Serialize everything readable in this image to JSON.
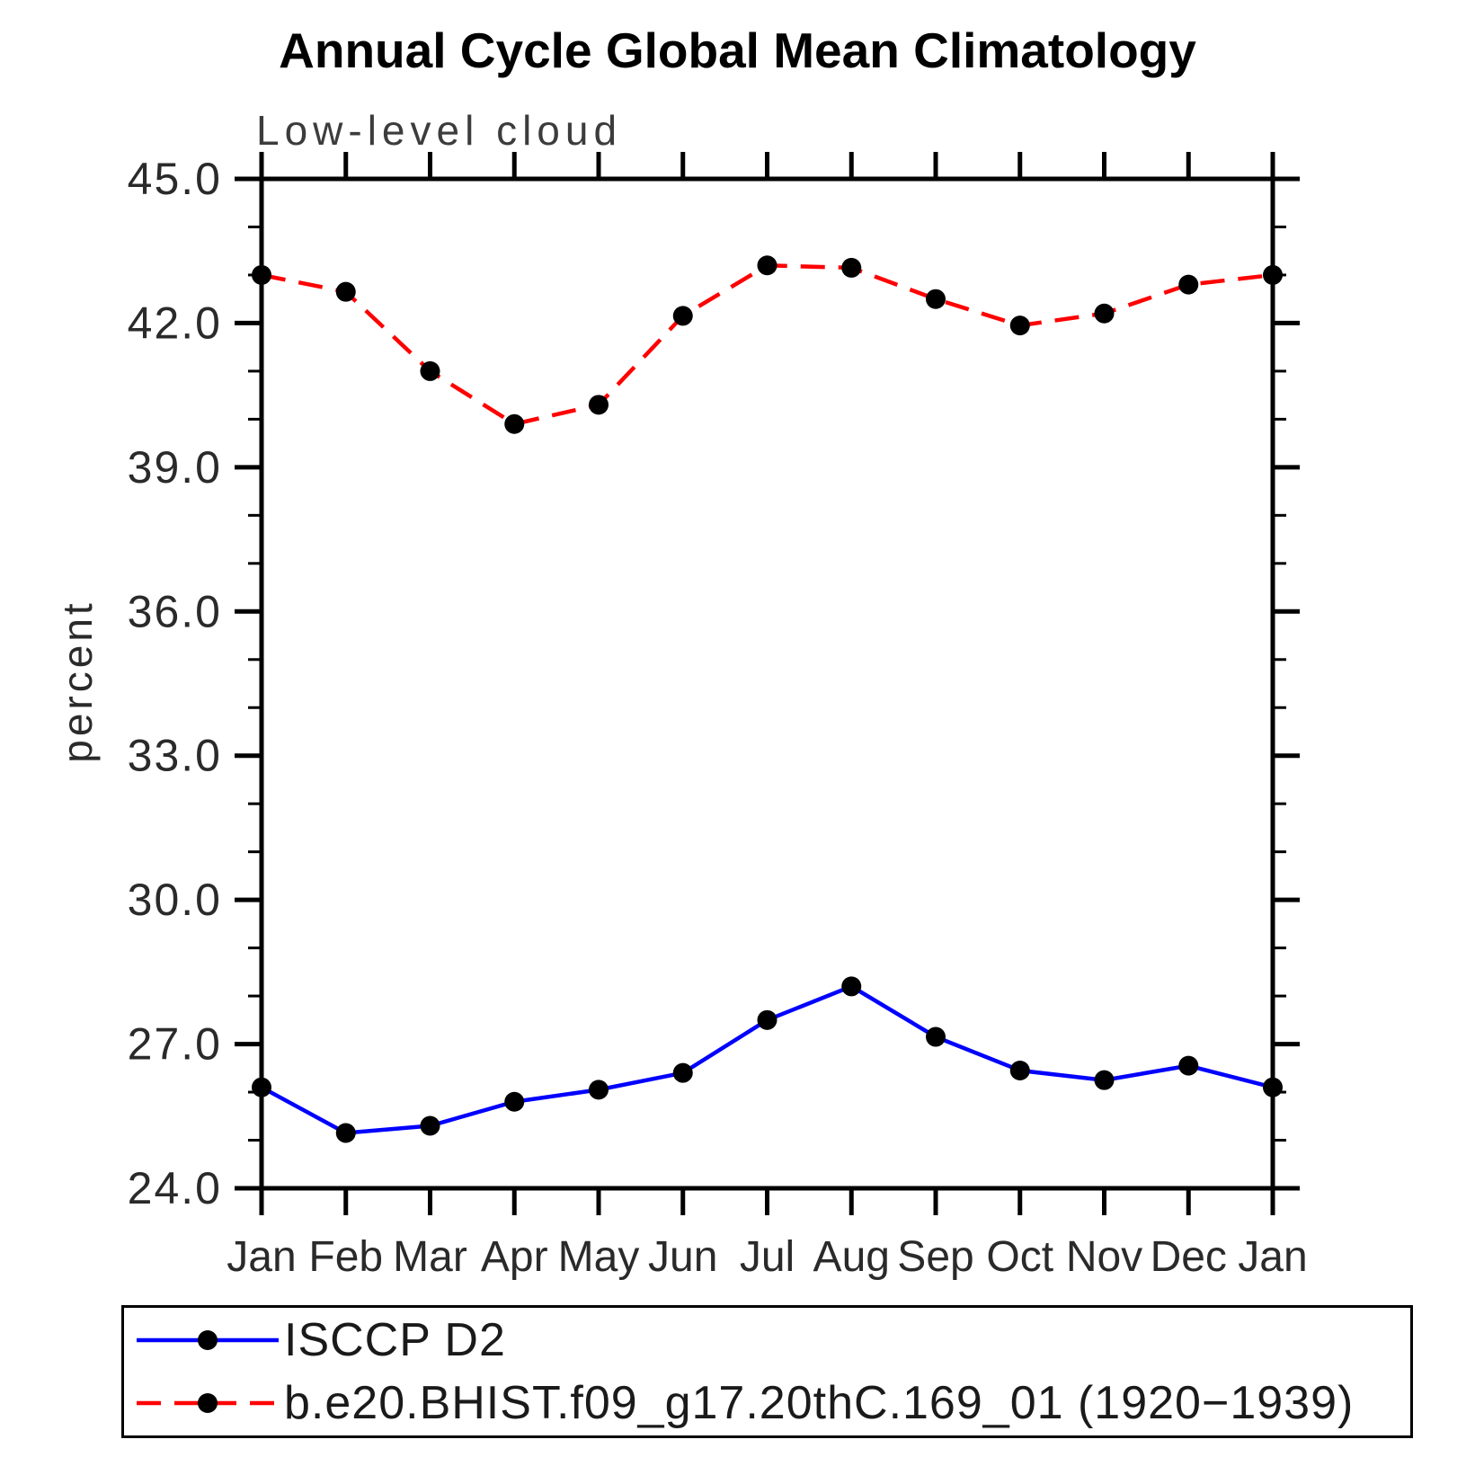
{
  "page": {
    "background": "#ffffff"
  },
  "chart_data": {
    "type": "line",
    "title": "Annual Cycle Global Mean Climatology",
    "subtitle": "Low-level cloud",
    "ylabel": "percent",
    "xlabel": "",
    "units": "percent",
    "ylim": [
      24.0,
      45.0
    ],
    "ymajor_ticks": [
      24.0,
      27.0,
      30.0,
      33.0,
      36.0,
      39.0,
      42.0,
      45.0
    ],
    "ymajor_labels": [
      "24.0",
      "27.0",
      "30.0",
      "33.0",
      "36.0",
      "39.0",
      "42.0",
      "45.0"
    ],
    "yminor_interval": 1.0,
    "categories": [
      "Jan",
      "Feb",
      "Mar",
      "Apr",
      "May",
      "Jun",
      "Jul",
      "Aug",
      "Sep",
      "Oct",
      "Nov",
      "Dec",
      "Jan"
    ],
    "grid": false,
    "legend_position": "bottom-left",
    "axis_color": "#000000",
    "series": [
      {
        "name": "ISCCP D2",
        "line_style": "solid",
        "color": "#0000ff",
        "marker": "filled-circle",
        "marker_color": "#000000",
        "values": [
          26.1,
          25.15,
          25.3,
          25.8,
          26.05,
          26.4,
          27.5,
          28.2,
          27.15,
          26.45,
          26.25,
          26.55,
          26.1
        ]
      },
      {
        "name": "b.e20.BHIST.f09_g17.20thC.169_01 (1920−1939)",
        "line_style": "dashed",
        "color": "#ff0000",
        "marker": "filled-circle",
        "marker_color": "#000000",
        "values": [
          43.0,
          42.65,
          41.0,
          39.9,
          40.3,
          42.15,
          43.2,
          43.15,
          42.5,
          41.95,
          42.2,
          42.8,
          43.0
        ]
      }
    ]
  }
}
